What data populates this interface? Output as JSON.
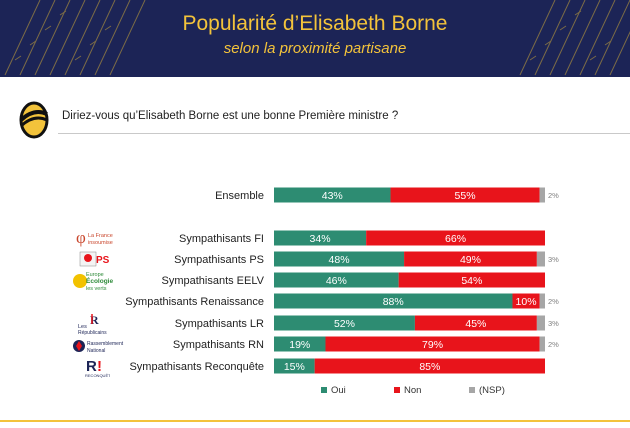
{
  "header": {
    "title": "Popularité d’Elisabeth Borne",
    "subtitle": "selon la proximité partisane"
  },
  "question": "Diriez-vous qu’Elisabeth Borne est une bonne Première ministre ?",
  "colors": {
    "oui": "#2d8c72",
    "non": "#e8141b",
    "nsp": "#a6a6a6",
    "navy": "#1c2456",
    "gold": "#f3c33b"
  },
  "party_logos": [
    {
      "name": "lfi-logo",
      "text": "La France insoumise"
    },
    {
      "name": "ps-logo",
      "text": "PS"
    },
    {
      "name": "eelv-logo",
      "text": "Europe Écologie les verts"
    },
    {
      "name": "lr-logo",
      "text": "Les Républicains"
    },
    {
      "name": "rn-logo",
      "text": "Rassemblement National"
    },
    {
      "name": "reconquete-logo",
      "text": "R! RECONQUÊTE"
    }
  ],
  "chart_data": {
    "type": "bar",
    "orientation": "horizontal",
    "stacked": true,
    "categories": [
      "Ensemble",
      "Sympathisants FI",
      "Sympathisants PS",
      "Sympathisants EELV",
      "Sympathisants Renaissance",
      "Sympathisants LR",
      "Sympathisants RN",
      "Sympathisants Reconquête"
    ],
    "series": [
      {
        "name": "Oui",
        "values": [
          43,
          34,
          48,
          46,
          88,
          52,
          19,
          15
        ],
        "labels": [
          "43%",
          "34%",
          "48%",
          "46%",
          "88%",
          "52%",
          "19%",
          "15%"
        ]
      },
      {
        "name": "Non",
        "values": [
          55,
          66,
          49,
          54,
          10,
          45,
          79,
          85
        ],
        "labels": [
          "55%",
          "66%",
          "49%",
          "54%",
          "10%",
          "45%",
          "79%",
          "85%"
        ]
      },
      {
        "name": "(NSP)",
        "values": [
          2,
          0,
          3,
          0,
          2,
          3,
          2,
          0
        ],
        "labels": [
          "2%",
          "",
          "3%",
          "",
          "2%",
          "3%",
          "2%",
          ""
        ]
      }
    ],
    "xlim": [
      0,
      100
    ],
    "legend": "bottom"
  }
}
